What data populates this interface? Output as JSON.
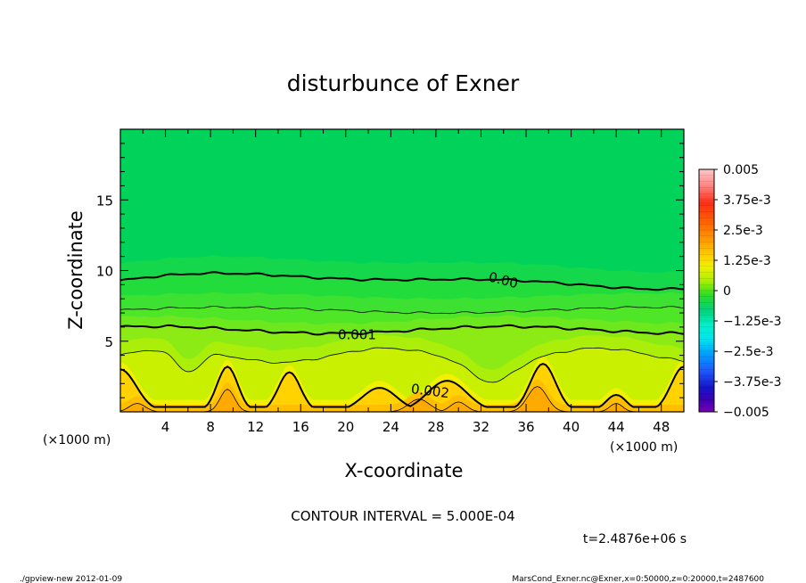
{
  "chart_data": {
    "type": "heatmap",
    "title": "disturbunce of Exner",
    "xlabel": "X-coordinate",
    "ylabel": "Z-coordinate",
    "x_unit_label": "(×1000 m)",
    "x_unit_label_left": "(×1000 m)",
    "xlim": [
      0,
      50
    ],
    "ylim": [
      0,
      20
    ],
    "x_ticks": [
      4,
      8,
      12,
      16,
      20,
      24,
      28,
      32,
      36,
      40,
      44,
      48
    ],
    "y_ticks": [
      5,
      10,
      15
    ],
    "colorbar_labels": [
      "0.005",
      "3.75e-3",
      "2.5e-3",
      "1.25e-3",
      "0",
      "−1.25e-3",
      "−2.5e-3",
      "−3.75e-3",
      "−0.005"
    ],
    "colorbar_range": [
      -0.005,
      0.005
    ],
    "contour_interval": 0.0005,
    "contour_labels": [
      "0.00",
      "0.001",
      "0.002"
    ],
    "grid": false,
    "legend": "colorbar right"
  },
  "annotations": {
    "contour_interval_text": "CONTOUR INTERVAL = 5.000E-04",
    "time_text": "t=2.4876e+06 s",
    "footer_left": "./gpview-new   2012-01-09",
    "footer_right": "MarsCond_Exner.nc@Exner,x=0:50000,z=0:20000,t=2487600"
  },
  "colors": {
    "level_neg": "#00d25a",
    "level_0": "#22dc3c",
    "level_1": "#50e628",
    "level_2": "#8ceb14",
    "level_3": "#c8f000",
    "level_4": "#f0f000",
    "level_5": "#ffd200",
    "level_6": "#ffaa00",
    "level_7": "#f08c14",
    "contour_line": "#000000"
  }
}
